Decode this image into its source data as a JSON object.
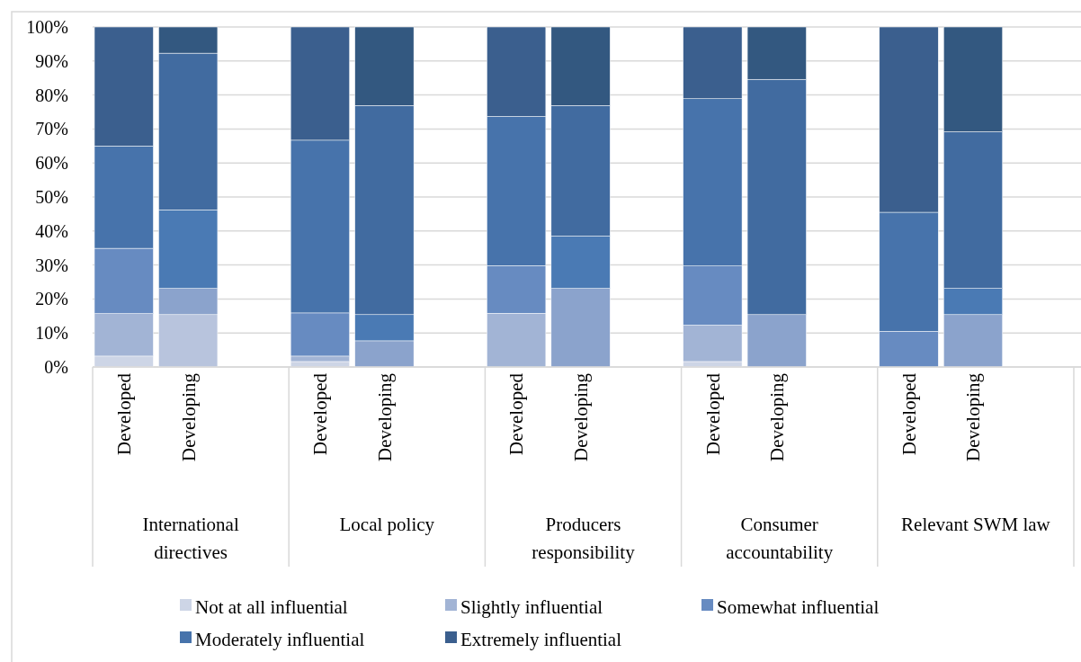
{
  "chart_data": {
    "type": "bar",
    "stacked": true,
    "categories": [
      "Developed",
      "Developing",
      "Developed",
      "Developing",
      "Developed",
      "Developing",
      "Developed",
      "Developing",
      "Developed",
      "Developing"
    ],
    "series": [
      {
        "name": "Not at all influential",
        "color": "#cdd5e6",
        "colors": [
          "#cdd5e6",
          "#b8c4dd",
          "#cdd5e6",
          "#b8c4dd",
          "#cdd5e6",
          "#b8c4dd",
          "#cdd5e6",
          "#b8c4dd",
          "#cdd5e6",
          "#b8c4dd"
        ],
        "values": [
          3.2,
          15.4,
          1.6,
          0,
          0,
          0,
          1.6,
          0,
          0,
          0
        ]
      },
      {
        "name": "Slightly influential",
        "color": "#a2b4d5",
        "colors": [
          "#a2b4d5",
          "#8ba3cc",
          "#a2b4d5",
          "#8ba3cc",
          "#a2b4d5",
          "#8ba3cc",
          "#a2b4d5",
          "#8ba3cc",
          "#a2b4d5",
          "#8ba3cc"
        ],
        "values": [
          12.5,
          7.7,
          1.6,
          7.7,
          15.8,
          23.1,
          10.7,
          15.4,
          0,
          15.4
        ]
      },
      {
        "name": "Somewhat influential",
        "color": "#678bc1",
        "colors": [
          "#678bc1",
          "#4a7ab4",
          "#678bc1",
          "#4a7ab4",
          "#678bc1",
          "#4a7ab4",
          "#678bc1",
          "#4a7ab4",
          "#678bc1",
          "#4a7ab4"
        ],
        "values": [
          19.2,
          23.1,
          12.7,
          7.7,
          14.0,
          15.4,
          17.4,
          0,
          10.5,
          7.7
        ]
      },
      {
        "name": "Moderately influential",
        "color": "#4773ab",
        "colors": [
          "#4773ab",
          "#416ba0",
          "#4773ab",
          "#416ba0",
          "#4773ab",
          "#416ba0",
          "#4773ab",
          "#416ba0",
          "#4773ab",
          "#416ba0"
        ],
        "values": [
          30.1,
          46.1,
          50.8,
          61.5,
          43.9,
          38.4,
          49.2,
          69.2,
          35.0,
          46.1
        ]
      },
      {
        "name": "Extremely influential",
        "color": "#3b5f8e",
        "colors": [
          "#3b5f8e",
          "#335880",
          "#3b5f8e",
          "#335880",
          "#3b5f8e",
          "#335880",
          "#3b5f8e",
          "#335880",
          "#3b5f8e",
          "#335880"
        ],
        "values": [
          35.0,
          7.7,
          33.3,
          23.1,
          26.3,
          23.1,
          21.1,
          15.4,
          54.5,
          30.8
        ]
      }
    ],
    "annotations": [
      "International directives",
      "Local policy",
      "Producers responsibility",
      "Consumer accountability",
      "Relevant SWM law"
    ],
    "ylim": [
      0,
      100
    ],
    "yticks": [
      {
        "value": 0,
        "label": "0%"
      },
      {
        "value": 10,
        "label": "10%"
      },
      {
        "value": 20,
        "label": "20%"
      },
      {
        "value": 30,
        "label": "30%"
      },
      {
        "value": 40,
        "label": "40%"
      },
      {
        "value": 50,
        "label": "50%"
      },
      {
        "value": 60,
        "label": "60%"
      },
      {
        "value": 70,
        "label": "70%"
      },
      {
        "value": 80,
        "label": "80%"
      },
      {
        "value": 90,
        "label": "90%"
      },
      {
        "value": 100,
        "label": "100%"
      }
    ],
    "grid": "y",
    "legend": "bottom"
  }
}
